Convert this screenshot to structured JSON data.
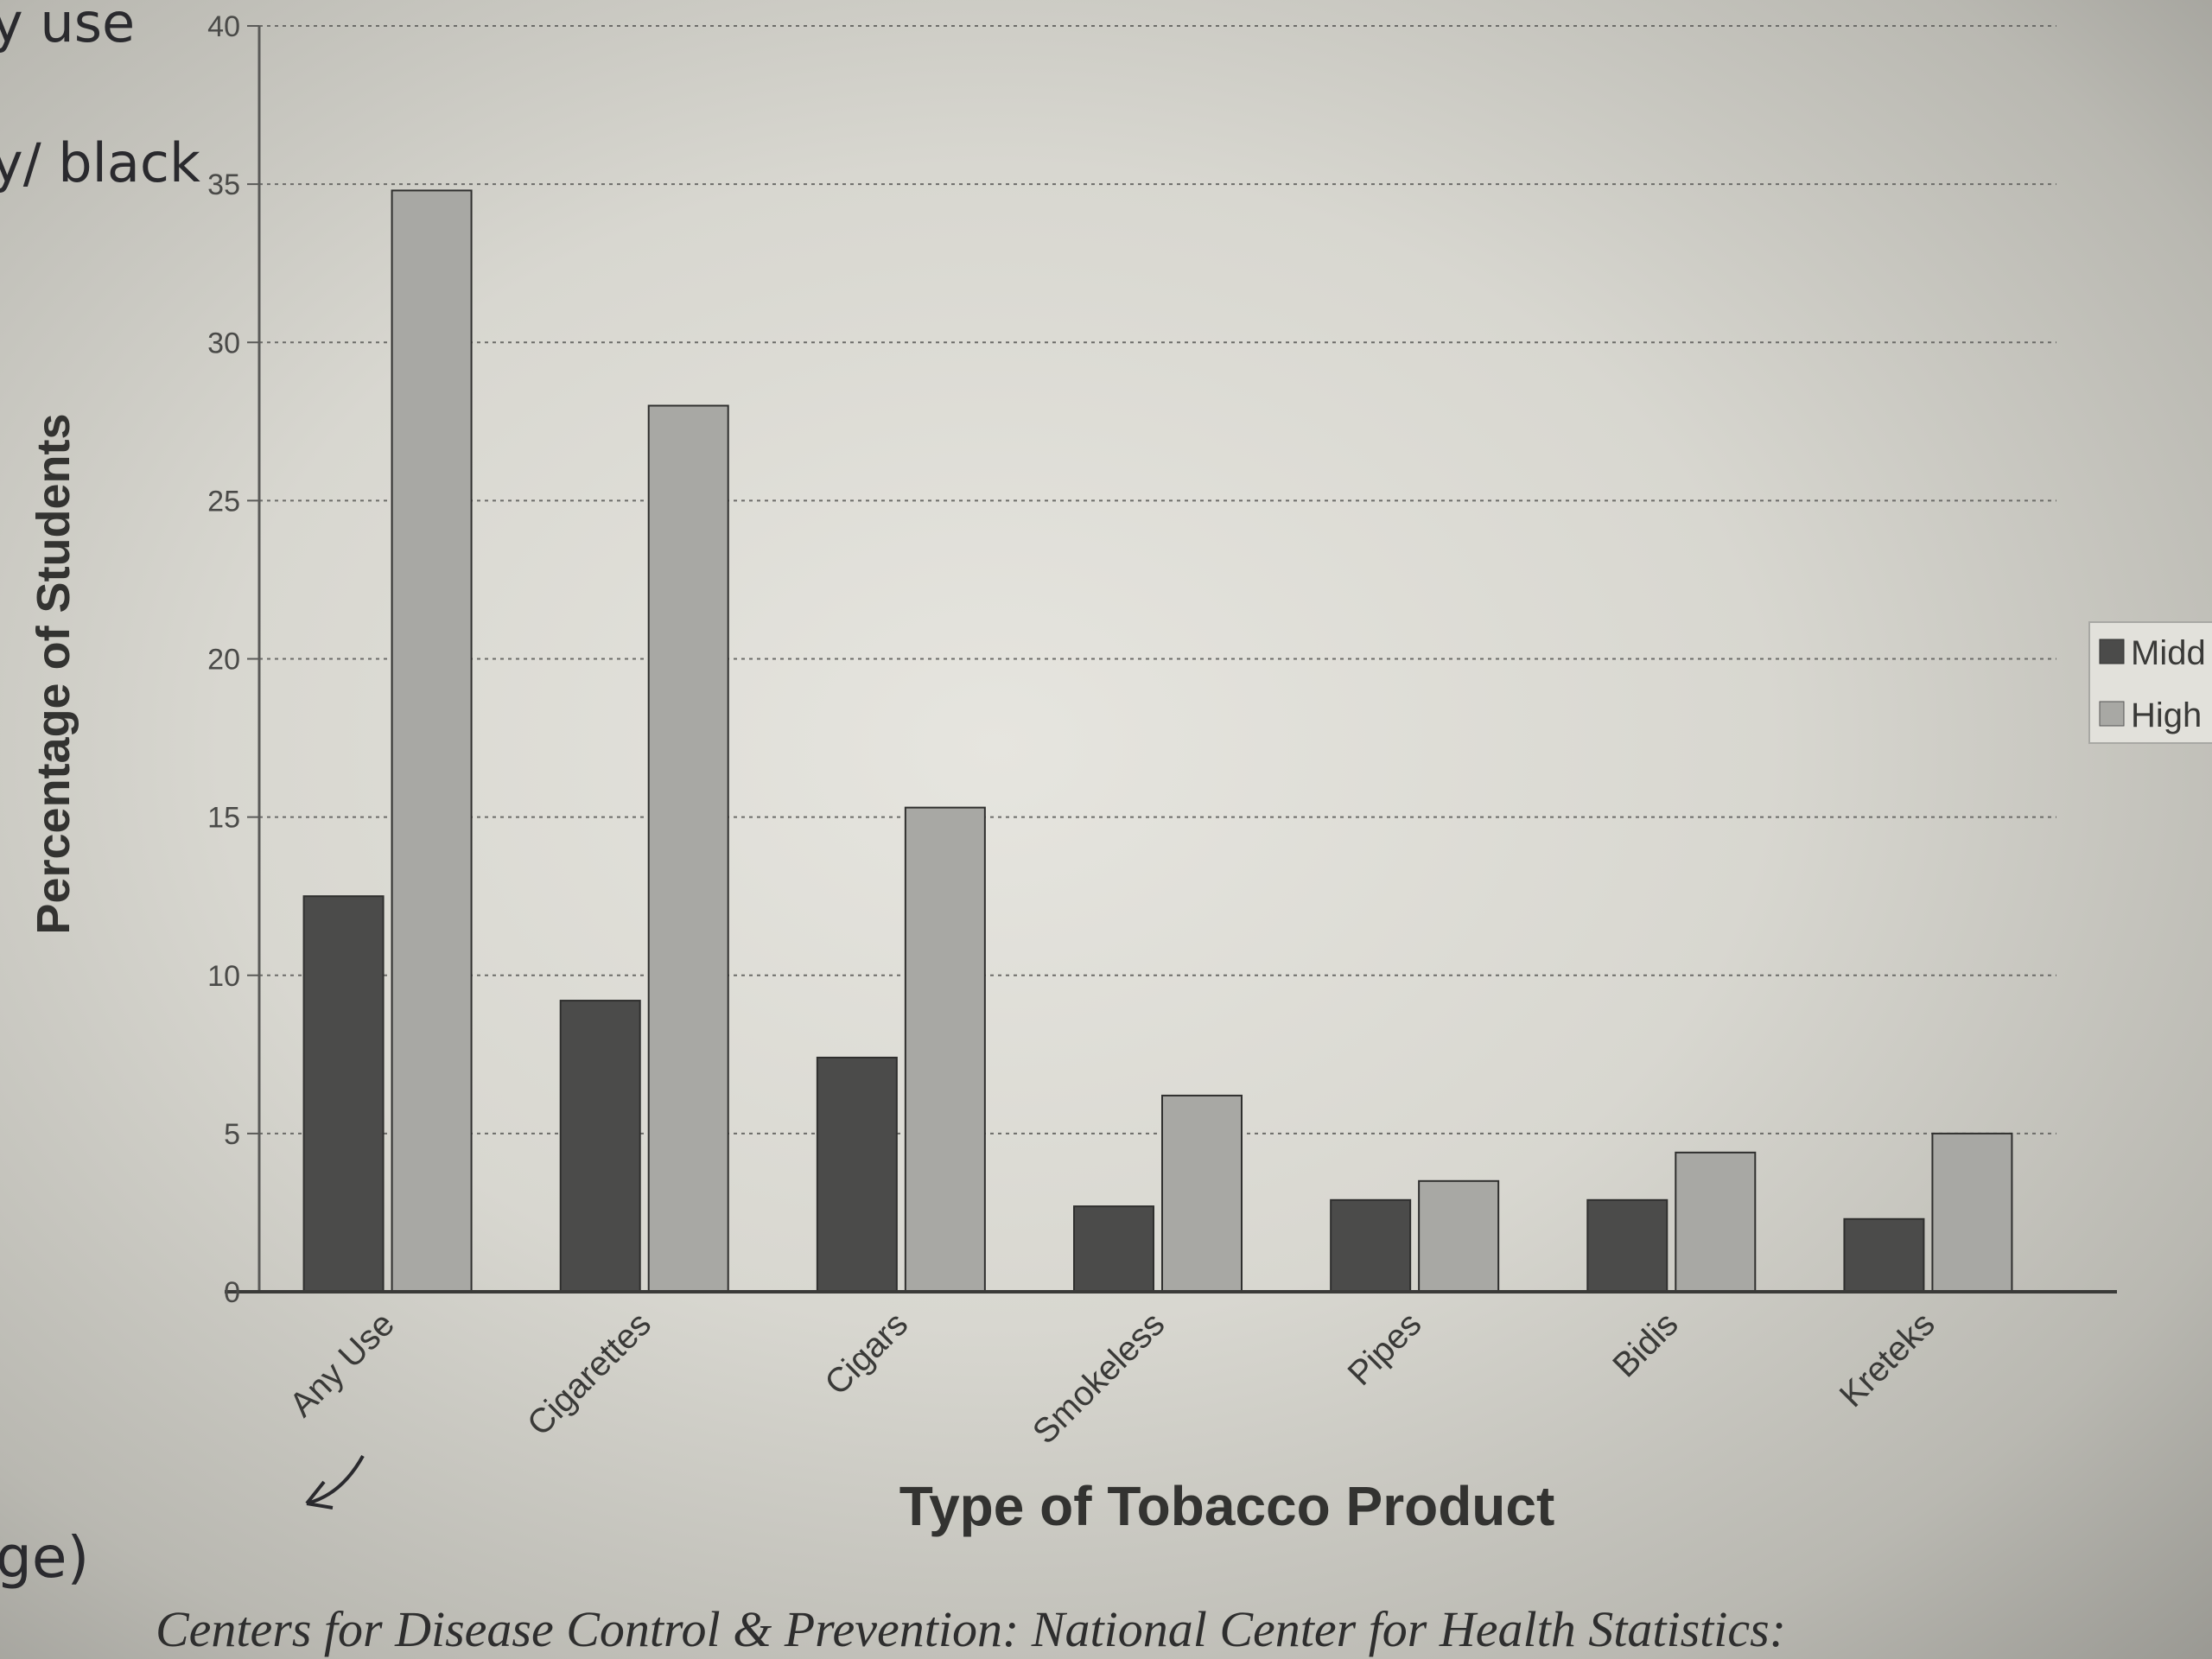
{
  "chart_data": {
    "type": "bar",
    "xlabel": "Type of Tobacco Product",
    "ylabel": "Percentage of Students",
    "categories": [
      "Any Use",
      "Cigarettes",
      "Cigars",
      "Smokeless",
      "Pipes",
      "Bidis",
      "Kreteks"
    ],
    "series": [
      {
        "name": "Midd",
        "color": "#4b4b4a",
        "values": [
          12.5,
          9.2,
          7.4,
          2.7,
          2.9,
          2.9,
          2.3
        ]
      },
      {
        "name": "High",
        "color": "#a8a8a4",
        "values": [
          34.8,
          28.0,
          15.3,
          6.2,
          3.5,
          4.4,
          5.0
        ]
      }
    ],
    "yticks": [
      "0",
      "5",
      "10",
      "15",
      "20",
      "25",
      "30",
      "35",
      "40"
    ],
    "ylim": [
      0,
      40
    ],
    "grid": true,
    "legend_position": "right"
  },
  "margin_notes": {
    "note_top": "y use",
    "note_second": "y/ black",
    "note_bottom": "ge)"
  },
  "footer_text": "Centers for Disease Control & Prevention: National Center for Health Statistics:"
}
